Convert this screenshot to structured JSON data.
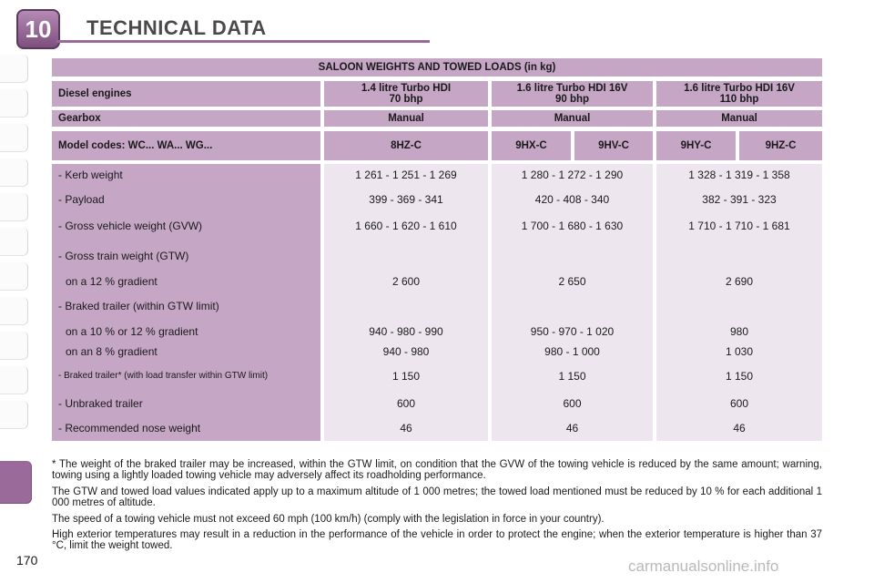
{
  "header": {
    "chapter_number": "10",
    "title": "TECHNICAL DATA"
  },
  "table": {
    "title": "SALOON WEIGHTS AND TOWED LOADS (in kg)",
    "engine_label": "Diesel engines",
    "engines": [
      {
        "line1": "1.4 litre Turbo HDI",
        "line2": "70 bhp"
      },
      {
        "line1": "1.6 litre Turbo HDI 16V",
        "line2": "90 bhp"
      },
      {
        "line1": "1.6 litre Turbo HDI 16V",
        "line2": "110 bhp"
      }
    ],
    "gearbox_label": "Gearbox",
    "gearboxes": [
      "Manual",
      "Manual",
      "Manual"
    ],
    "model_label": "Model codes: WC... WA... WG...",
    "model_codes": [
      "8HZ-C",
      "9HX-C",
      "9HV-C",
      "9HY-C",
      "9HZ-C"
    ],
    "rows": [
      {
        "label": "- Kerb weight",
        "values": [
          "1 261 - 1 251 - 1 269",
          "1 280 - 1 272 - 1 290",
          "1 328 - 1 319 - 1 358"
        ]
      },
      {
        "label": "- Payload",
        "values": [
          "399 - 369 - 341",
          "420 - 408 - 340",
          "382 - 391 - 323"
        ]
      },
      {
        "label": "- Gross vehicle weight (GVW)",
        "values": [
          "1 660 - 1 620 - 1 610",
          "1 700 - 1 680 - 1 630",
          "1 710 - 1 710 - 1 681"
        ]
      },
      {
        "label": "- Gross train weight (GTW)",
        "values": [
          "",
          "",
          ""
        ]
      },
      {
        "label": "on a 12 % gradient",
        "values": [
          "2 600",
          "2 650",
          "2 690"
        ]
      },
      {
        "label": "- Braked trailer (within GTW limit)",
        "values": [
          "",
          "",
          ""
        ]
      },
      {
        "label": "on a 10 % or 12 % gradient",
        "values": [
          "940 - 980 - 990",
          "950 - 970 - 1 020",
          "980"
        ]
      },
      {
        "label": "on an 8 % gradient",
        "values": [
          "940 - 980",
          "980 - 1 000",
          "1 030"
        ]
      },
      {
        "label": "- Braked trailer* (with load transfer within GTW limit)",
        "values": [
          "1 150",
          "1 150",
          "1 150"
        ]
      },
      {
        "label": "- Unbraked trailer",
        "values": [
          "600",
          "600",
          "600"
        ]
      },
      {
        "label": "- Recommended nose weight",
        "values": [
          "46",
          "46",
          "46"
        ]
      }
    ]
  },
  "notes": [
    "* The weight of the braked trailer may be increased, within the GTW limit, on condition that the GVW of the towing vehicle is reduced by the same amount; warning, towing using a lightly loaded towing vehicle may adversely affect its roadholding performance.",
    "The GTW and towed load values indicated apply up to a maximum altitude of 1 000 metres; the towed load mentioned must be reduced by 10 % for each additional 1 000 metres of altitude.",
    "The speed of a towing vehicle must not exceed 60 mph (100 km/h) (comply with the legislation in force in your country).",
    "High exterior temperatures may result in a reduction in the performance of the vehicle in order to protect the engine; when the exterior temperature is higher than 37 °C, limit the weight towed."
  ],
  "page_number": "170",
  "watermark": "carmanualsonline.info"
}
